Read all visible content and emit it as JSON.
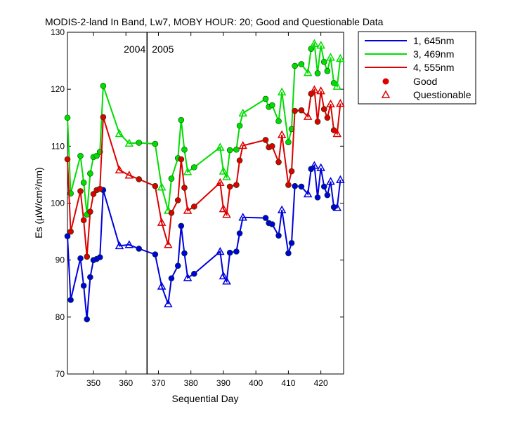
{
  "chart_data": {
    "type": "line",
    "title": "MODIS-2-land In Band,  Lw7, MOBY HOUR: 20;  Good and Questionable Data",
    "xlabel": "Sequential Day",
    "ylabel": "Es (µW/cm²/nm)",
    "xlim": [
      342,
      427
    ],
    "ylim": [
      70,
      130
    ],
    "xticks": [
      350,
      360,
      370,
      380,
      390,
      400,
      410,
      420
    ],
    "yticks": [
      70,
      80,
      90,
      100,
      110,
      120,
      130
    ],
    "grid": false,
    "legend": "outside-top-right",
    "year_divider": {
      "x": 366.5,
      "left_label": "2004",
      "right_label": "2005"
    },
    "legend_entries": {
      "good": "Good",
      "questionable": "Questionable"
    },
    "series": [
      {
        "name": "1, 645nm",
        "color": "#0000dd",
        "x": [
          342,
          343,
          346,
          347,
          348,
          349,
          350,
          351,
          352,
          353,
          358,
          361,
          364,
          369,
          371,
          373,
          374,
          376,
          377,
          378,
          379,
          381,
          389,
          390,
          391,
          392,
          394,
          395,
          396,
          403,
          404,
          405,
          407,
          408,
          410,
          411,
          412,
          414,
          416,
          417,
          418,
          419,
          420,
          421,
          422,
          423,
          424,
          425,
          426
        ],
        "y": [
          94.2,
          83.0,
          90.3,
          85.5,
          79.6,
          87.0,
          90.0,
          90.2,
          90.5,
          102.3,
          92.5,
          92.7,
          92.0,
          91.0,
          85.4,
          82.3,
          86.8,
          89.0,
          96.0,
          91.2,
          86.9,
          87.6,
          91.5,
          87.2,
          86.3,
          91.3,
          91.5,
          94.7,
          97.5,
          97.4,
          96.5,
          96.3,
          94.3,
          98.8,
          91.2,
          93.0,
          103.0,
          102.9,
          101.6,
          106.0,
          106.6,
          101.0,
          106.2,
          102.9,
          101.4,
          103.8,
          99.3,
          99.2,
          104.1
        ],
        "status": [
          "G",
          "G",
          "G",
          "G",
          "G",
          "G",
          "G",
          "G",
          "G",
          "G",
          "Q",
          "Q",
          "G",
          "G",
          "Q",
          "Q",
          "G",
          "G",
          "G",
          "G",
          "Q",
          "G",
          "Q",
          "Q",
          "Q",
          "G",
          "G",
          "G",
          "Q",
          "G",
          "G",
          "G",
          "G",
          "Q",
          "G",
          "G",
          "G",
          "G",
          "Q",
          "G",
          "Q",
          "G",
          "Q",
          "G",
          "G",
          "Q",
          "G",
          "Q",
          "Q"
        ]
      },
      {
        "name": "3, 469nm",
        "color": "#00dd00",
        "x": [
          342,
          343,
          346,
          347,
          348,
          349,
          350,
          351,
          352,
          353,
          358,
          361,
          364,
          369,
          371,
          373,
          374,
          376,
          377,
          378,
          379,
          381,
          389,
          390,
          391,
          392,
          394,
          395,
          396,
          403,
          404,
          405,
          407,
          408,
          410,
          411,
          412,
          414,
          416,
          417,
          418,
          419,
          420,
          421,
          422,
          423,
          424,
          425,
          426
        ],
        "y": [
          115.0,
          101.7,
          108.3,
          103.6,
          98.0,
          105.2,
          108.1,
          108.3,
          109.0,
          120.6,
          112.2,
          110.5,
          110.6,
          110.4,
          102.8,
          98.7,
          104.3,
          107.9,
          114.6,
          109.4,
          105.5,
          106.3,
          109.8,
          105.6,
          104.6,
          109.3,
          109.4,
          113.6,
          115.8,
          118.3,
          116.9,
          117.2,
          114.4,
          119.5,
          110.7,
          113.0,
          124.1,
          124.4,
          122.9,
          127.1,
          128.0,
          122.8,
          127.7,
          124.8,
          123.2,
          125.6,
          121.1,
          120.5,
          125.4
        ],
        "status": [
          "G",
          "G",
          "G",
          "G",
          "G",
          "G",
          "G",
          "G",
          "G",
          "G",
          "Q",
          "Q",
          "G",
          "G",
          "Q",
          "Q",
          "G",
          "G",
          "G",
          "G",
          "Q",
          "G",
          "Q",
          "Q",
          "Q",
          "G",
          "G",
          "G",
          "Q",
          "G",
          "G",
          "G",
          "G",
          "Q",
          "G",
          "G",
          "G",
          "G",
          "Q",
          "G",
          "Q",
          "G",
          "Q",
          "G",
          "G",
          "Q",
          "G",
          "Q",
          "Q"
        ]
      },
      {
        "name": "4, 555nm",
        "color": "#dd0000",
        "x": [
          342,
          343,
          346,
          347,
          348,
          349,
          350,
          351,
          352,
          353,
          358,
          361,
          364,
          369,
          371,
          373,
          374,
          376,
          377,
          378,
          379,
          381,
          389,
          390,
          391,
          392,
          394,
          395,
          396,
          403,
          404,
          405,
          407,
          408,
          410,
          411,
          412,
          414,
          416,
          417,
          418,
          419,
          420,
          421,
          422,
          423,
          424,
          425,
          426
        ],
        "y": [
          107.7,
          95.0,
          102.1,
          97.0,
          90.6,
          98.5,
          101.6,
          102.3,
          102.5,
          115.1,
          105.8,
          104.9,
          104.2,
          103.0,
          96.6,
          92.7,
          98.3,
          100.5,
          107.7,
          102.7,
          98.7,
          99.4,
          103.6,
          99.0,
          98.0,
          102.9,
          103.2,
          107.5,
          110.1,
          111.1,
          109.8,
          110.0,
          107.2,
          112.0,
          103.2,
          105.6,
          116.2,
          116.3,
          115.2,
          119.2,
          119.9,
          114.3,
          119.7,
          116.5,
          115.0,
          117.4,
          112.8,
          112.2,
          117.5
        ],
        "status": [
          "G",
          "G",
          "G",
          "G",
          "G",
          "G",
          "G",
          "G",
          "G",
          "G",
          "Q",
          "Q",
          "G",
          "G",
          "Q",
          "Q",
          "G",
          "G",
          "G",
          "G",
          "Q",
          "G",
          "Q",
          "Q",
          "Q",
          "G",
          "G",
          "G",
          "Q",
          "G",
          "G",
          "G",
          "G",
          "Q",
          "G",
          "G",
          "G",
          "G",
          "Q",
          "G",
          "Q",
          "G",
          "Q",
          "G",
          "G",
          "Q",
          "G",
          "Q",
          "Q"
        ]
      }
    ]
  }
}
